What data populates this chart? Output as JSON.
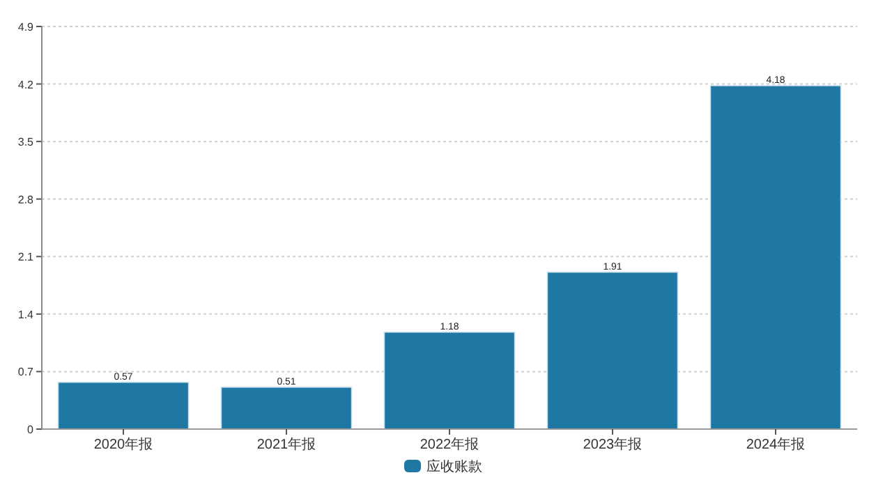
{
  "chart_data": {
    "type": "bar",
    "categories": [
      "2020年报",
      "2021年报",
      "2022年报",
      "2023年报",
      "2024年报"
    ],
    "series": [
      {
        "name": "应收账款",
        "color": "#1f77a4",
        "values": [
          0.57,
          0.51,
          1.18,
          1.91,
          4.18
        ]
      }
    ],
    "ylim": [
      0,
      4.9
    ],
    "yticks": [
      0,
      0.7,
      1.4,
      2.1,
      2.8,
      3.5,
      4.2,
      4.9
    ],
    "grid": "y",
    "legend": "bottom",
    "data_labels": true
  }
}
